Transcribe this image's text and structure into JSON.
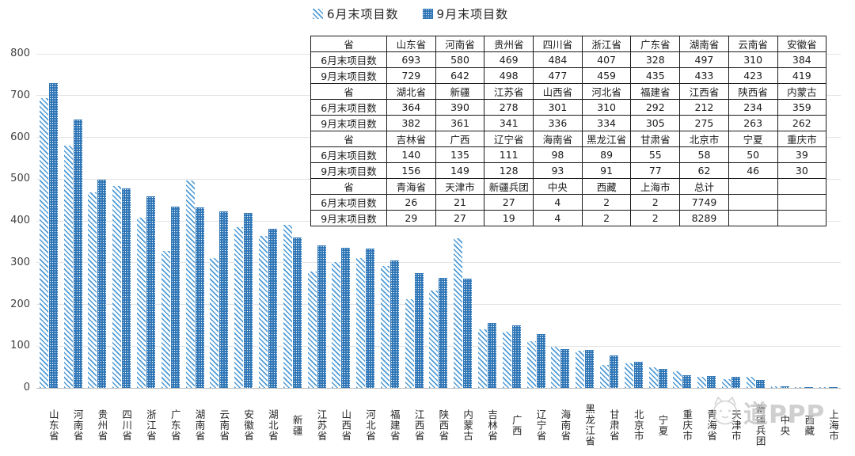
{
  "legend": {
    "june_label": "6月末项目数",
    "sept_label": "9月末项目数"
  },
  "colors": {
    "june_stripe": "#4d9ad5",
    "sept_fill": "#2e75b6",
    "gridline": "#e3e3e3",
    "axis_line": "#bfbfbf",
    "table_border": "#1a1a1a",
    "watermark_gray": "#c2c2c2"
  },
  "chart_data": {
    "type": "bar",
    "title": "",
    "xlabel": "",
    "ylabel": "",
    "ylim": [
      0,
      800
    ],
    "yticks": [
      0,
      100,
      200,
      300,
      400,
      500,
      600,
      700,
      800
    ],
    "grid": true,
    "legend_position": "top-center",
    "categories": [
      "山东省",
      "河南省",
      "贵州省",
      "四川省",
      "浙江省",
      "广东省",
      "湖南省",
      "云南省",
      "安徽省",
      "湖北省",
      "新疆",
      "江苏省",
      "山西省",
      "河北省",
      "福建省",
      "江西省",
      "陕西省",
      "内蒙古",
      "吉林省",
      "广西",
      "辽宁省",
      "海南省",
      "黑龙江省",
      "甘肃省",
      "北京市",
      "宁夏",
      "重庆市",
      "青海省",
      "天津市",
      "新疆兵团",
      "中央",
      "西藏",
      "上海市"
    ],
    "series": [
      {
        "name": "6月末项目数",
        "values": [
          693,
          580,
          469,
          484,
          407,
          328,
          497,
          310,
          384,
          364,
          390,
          278,
          301,
          310,
          292,
          212,
          234,
          359,
          140,
          135,
          111,
          98,
          89,
          55,
          58,
          50,
          39,
          26,
          21,
          27,
          4,
          2,
          2
        ]
      },
      {
        "name": "9月末项目数",
        "values": [
          729,
          642,
          498,
          477,
          459,
          435,
          433,
          423,
          419,
          382,
          361,
          341,
          336,
          334,
          305,
          275,
          263,
          262,
          156,
          149,
          128,
          93,
          91,
          77,
          62,
          46,
          30,
          29,
          27,
          19,
          4,
          2,
          2
        ]
      }
    ]
  },
  "table": {
    "rows": [
      [
        "省",
        "山东省",
        "河南省",
        "贵州省",
        "四川省",
        "浙江省",
        "广东省",
        "湖南省",
        "云南省",
        "安徽省"
      ],
      [
        "6月末项目数",
        "693",
        "580",
        "469",
        "484",
        "407",
        "328",
        "497",
        "310",
        "384"
      ],
      [
        "9月末项目数",
        "729",
        "642",
        "498",
        "477",
        "459",
        "435",
        "433",
        "423",
        "419"
      ],
      [
        "省",
        "湖北省",
        "新疆",
        "江苏省",
        "山西省",
        "河北省",
        "福建省",
        "江西省",
        "陕西省",
        "内蒙古"
      ],
      [
        "6月末项目数",
        "364",
        "390",
        "278",
        "301",
        "310",
        "292",
        "212",
        "234",
        "359"
      ],
      [
        "9月末项目数",
        "382",
        "361",
        "341",
        "336",
        "334",
        "305",
        "275",
        "263",
        "262"
      ],
      [
        "省",
        "吉林省",
        "广西",
        "辽宁省",
        "海南省",
        "黑龙江省",
        "甘肃省",
        "北京市",
        "宁夏",
        "重庆市"
      ],
      [
        "6月末项目数",
        "140",
        "135",
        "111",
        "98",
        "89",
        "55",
        "58",
        "50",
        "39"
      ],
      [
        "9月末项目数",
        "156",
        "149",
        "128",
        "93",
        "91",
        "77",
        "62",
        "46",
        "30"
      ],
      [
        "省",
        "青海省",
        "天津市",
        "新疆兵团",
        "中央",
        "西藏",
        "上海市",
        "总计",
        "",
        ""
      ],
      [
        "6月末项目数",
        "26",
        "21",
        "27",
        "4",
        "2",
        "2",
        "7749",
        "",
        ""
      ],
      [
        "9月末项目数",
        "29",
        "27",
        "19",
        "4",
        "2",
        "2",
        "8289",
        "",
        ""
      ]
    ]
  },
  "watermark": {
    "text": "道PPP"
  }
}
